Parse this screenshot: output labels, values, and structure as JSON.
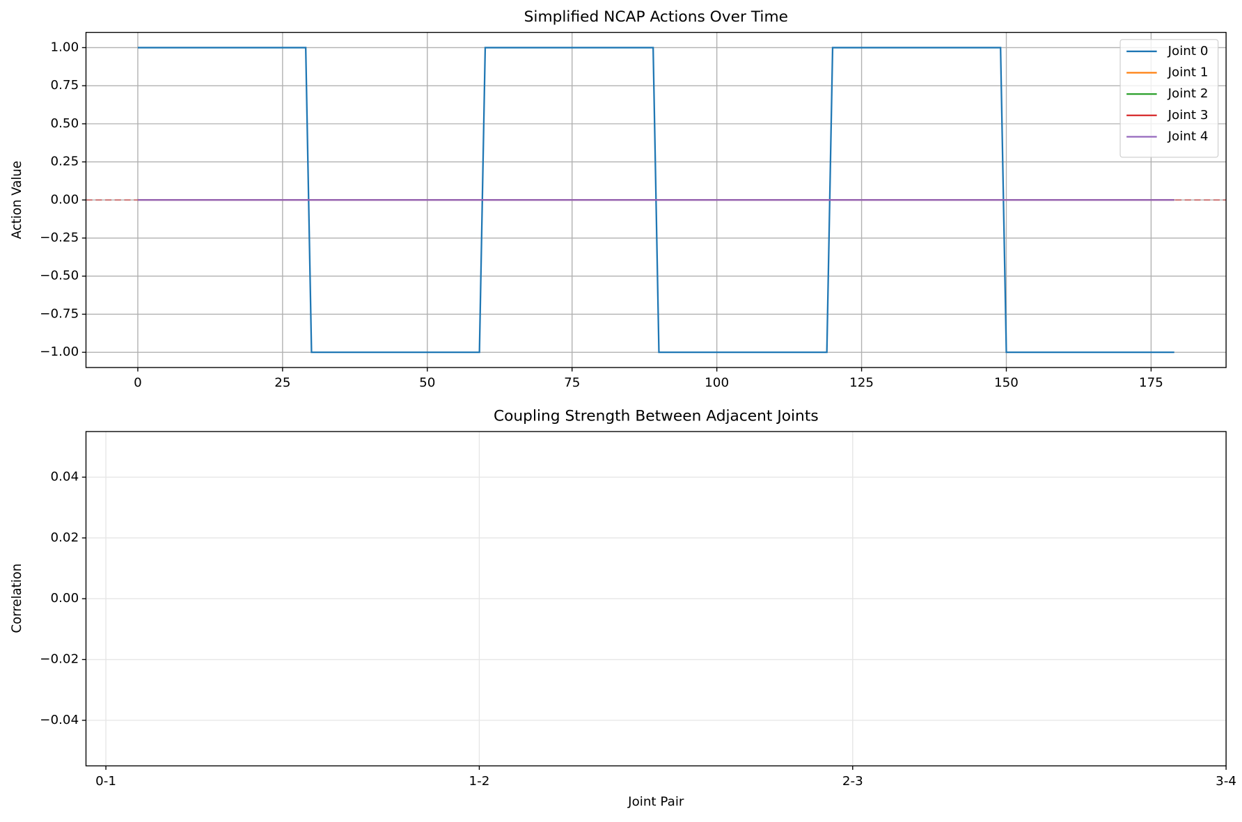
{
  "chart_data": [
    {
      "type": "line",
      "title": "Simplified NCAP Actions Over Time",
      "ylabel": "Action Value",
      "x": [
        0,
        1,
        2,
        3,
        4,
        5,
        6,
        7,
        8,
        9,
        10,
        11,
        12,
        13,
        14,
        15,
        16,
        17,
        18,
        19,
        20,
        21,
        22,
        23,
        24,
        25,
        26,
        27,
        28,
        29,
        30,
        31,
        32,
        33,
        34,
        35,
        36,
        37,
        38,
        39,
        40,
        41,
        42,
        43,
        44,
        45,
        46,
        47,
        48,
        49,
        50,
        51,
        52,
        53,
        54,
        55,
        56,
        57,
        58,
        59,
        60,
        61,
        62,
        63,
        64,
        65,
        66,
        67,
        68,
        69,
        70,
        71,
        72,
        73,
        74,
        75,
        76,
        77,
        78,
        79,
        80,
        81,
        82,
        83,
        84,
        85,
        86,
        87,
        88,
        89,
        90,
        91,
        92,
        93,
        94,
        95,
        96,
        97,
        98,
        99,
        100,
        101,
        102,
        103,
        104,
        105,
        106,
        107,
        108,
        109,
        110,
        111,
        112,
        113,
        114,
        115,
        116,
        117,
        118,
        119,
        120,
        121,
        122,
        123,
        124,
        125,
        126,
        127,
        128,
        129,
        130,
        131,
        132,
        133,
        134,
        135,
        136,
        137,
        138,
        139,
        140,
        141,
        142,
        143,
        144,
        145,
        146,
        147,
        148,
        149,
        150,
        151,
        152,
        153,
        154,
        155,
        156,
        157,
        158,
        159,
        160,
        161,
        162,
        163,
        164,
        165,
        166,
        167,
        168,
        169,
        170,
        171,
        172,
        173,
        174,
        175,
        176,
        177,
        178,
        179
      ],
      "series": [
        {
          "name": "Joint 0",
          "color": "#1f77b4",
          "values": [
            1,
            1,
            1,
            1,
            1,
            1,
            1,
            1,
            1,
            1,
            1,
            1,
            1,
            1,
            1,
            1,
            1,
            1,
            1,
            1,
            1,
            1,
            1,
            1,
            1,
            1,
            1,
            1,
            1,
            1,
            -1,
            -1,
            -1,
            -1,
            -1,
            -1,
            -1,
            -1,
            -1,
            -1,
            -1,
            -1,
            -1,
            -1,
            -1,
            -1,
            -1,
            -1,
            -1,
            -1,
            -1,
            -1,
            -1,
            -1,
            -1,
            -1,
            -1,
            -1,
            -1,
            -1,
            1,
            1,
            1,
            1,
            1,
            1,
            1,
            1,
            1,
            1,
            1,
            1,
            1,
            1,
            1,
            1,
            1,
            1,
            1,
            1,
            1,
            1,
            1,
            1,
            1,
            1,
            1,
            1,
            1,
            1,
            -1,
            -1,
            -1,
            -1,
            -1,
            -1,
            -1,
            -1,
            -1,
            -1,
            -1,
            -1,
            -1,
            -1,
            -1,
            -1,
            -1,
            -1,
            -1,
            -1,
            -1,
            -1,
            -1,
            -1,
            -1,
            -1,
            -1,
            -1,
            -1,
            -1,
            1,
            1,
            1,
            1,
            1,
            1,
            1,
            1,
            1,
            1,
            1,
            1,
            1,
            1,
            1,
            1,
            1,
            1,
            1,
            1,
            1,
            1,
            1,
            1,
            1,
            1,
            1,
            1,
            1,
            1,
            -1,
            -1,
            -1,
            -1,
            -1,
            -1,
            -1,
            -1,
            -1,
            -1,
            -1,
            -1,
            -1,
            -1,
            -1,
            -1,
            -1,
            -1,
            -1,
            -1,
            -1,
            -1,
            -1,
            -1,
            -1,
            -1,
            -1,
            -1,
            -1,
            -1
          ]
        },
        {
          "name": "Joint 1",
          "color": "#ff7f0e",
          "values": [
            0,
            0,
            0,
            0,
            0,
            0,
            0,
            0,
            0,
            0,
            0,
            0,
            0,
            0,
            0,
            0,
            0,
            0,
            0,
            0,
            0,
            0,
            0,
            0,
            0,
            0,
            0,
            0,
            0,
            0,
            0,
            0,
            0,
            0,
            0,
            0,
            0,
            0,
            0,
            0,
            0,
            0,
            0,
            0,
            0,
            0,
            0,
            0,
            0,
            0,
            0,
            0,
            0,
            0,
            0,
            0,
            0,
            0,
            0,
            0,
            0,
            0,
            0,
            0,
            0,
            0,
            0,
            0,
            0,
            0,
            0,
            0,
            0,
            0,
            0,
            0,
            0,
            0,
            0,
            0,
            0,
            0,
            0,
            0,
            0,
            0,
            0,
            0,
            0,
            0,
            0,
            0,
            0,
            0,
            0,
            0,
            0,
            0,
            0,
            0,
            0,
            0,
            0,
            0,
            0,
            0,
            0,
            0,
            0,
            0,
            0,
            0,
            0,
            0,
            0,
            0,
            0,
            0,
            0,
            0,
            0,
            0,
            0,
            0,
            0,
            0,
            0,
            0,
            0,
            0,
            0,
            0,
            0,
            0,
            0,
            0,
            0,
            0,
            0,
            0,
            0,
            0,
            0,
            0,
            0,
            0,
            0,
            0,
            0,
            0,
            0,
            0,
            0,
            0,
            0,
            0,
            0,
            0,
            0,
            0,
            0,
            0,
            0,
            0,
            0,
            0,
            0,
            0,
            0,
            0,
            0,
            0,
            0,
            0,
            0,
            0,
            0,
            0,
            0,
            0
          ]
        },
        {
          "name": "Joint 2",
          "color": "#2ca02c",
          "values": [
            0,
            0,
            0,
            0,
            0,
            0,
            0,
            0,
            0,
            0,
            0,
            0,
            0,
            0,
            0,
            0,
            0,
            0,
            0,
            0,
            0,
            0,
            0,
            0,
            0,
            0,
            0,
            0,
            0,
            0,
            0,
            0,
            0,
            0,
            0,
            0,
            0,
            0,
            0,
            0,
            0,
            0,
            0,
            0,
            0,
            0,
            0,
            0,
            0,
            0,
            0,
            0,
            0,
            0,
            0,
            0,
            0,
            0,
            0,
            0,
            0,
            0,
            0,
            0,
            0,
            0,
            0,
            0,
            0,
            0,
            0,
            0,
            0,
            0,
            0,
            0,
            0,
            0,
            0,
            0,
            0,
            0,
            0,
            0,
            0,
            0,
            0,
            0,
            0,
            0,
            0,
            0,
            0,
            0,
            0,
            0,
            0,
            0,
            0,
            0,
            0,
            0,
            0,
            0,
            0,
            0,
            0,
            0,
            0,
            0,
            0,
            0,
            0,
            0,
            0,
            0,
            0,
            0,
            0,
            0,
            0,
            0,
            0,
            0,
            0,
            0,
            0,
            0,
            0,
            0,
            0,
            0,
            0,
            0,
            0,
            0,
            0,
            0,
            0,
            0,
            0,
            0,
            0,
            0,
            0,
            0,
            0,
            0,
            0,
            0,
            0,
            0,
            0,
            0,
            0,
            0,
            0,
            0,
            0,
            0,
            0,
            0,
            0,
            0,
            0,
            0,
            0,
            0,
            0,
            0,
            0,
            0,
            0,
            0,
            0,
            0,
            0,
            0,
            0,
            0
          ]
        },
        {
          "name": "Joint 3",
          "color": "#d62728",
          "values": [
            0,
            0,
            0,
            0,
            0,
            0,
            0,
            0,
            0,
            0,
            0,
            0,
            0,
            0,
            0,
            0,
            0,
            0,
            0,
            0,
            0,
            0,
            0,
            0,
            0,
            0,
            0,
            0,
            0,
            0,
            0,
            0,
            0,
            0,
            0,
            0,
            0,
            0,
            0,
            0,
            0,
            0,
            0,
            0,
            0,
            0,
            0,
            0,
            0,
            0,
            0,
            0,
            0,
            0,
            0,
            0,
            0,
            0,
            0,
            0,
            0,
            0,
            0,
            0,
            0,
            0,
            0,
            0,
            0,
            0,
            0,
            0,
            0,
            0,
            0,
            0,
            0,
            0,
            0,
            0,
            0,
            0,
            0,
            0,
            0,
            0,
            0,
            0,
            0,
            0,
            0,
            0,
            0,
            0,
            0,
            0,
            0,
            0,
            0,
            0,
            0,
            0,
            0,
            0,
            0,
            0,
            0,
            0,
            0,
            0,
            0,
            0,
            0,
            0,
            0,
            0,
            0,
            0,
            0,
            0,
            0,
            0,
            0,
            0,
            0,
            0,
            0,
            0,
            0,
            0,
            0,
            0,
            0,
            0,
            0,
            0,
            0,
            0,
            0,
            0,
            0,
            0,
            0,
            0,
            0,
            0,
            0,
            0,
            0,
            0,
            0,
            0,
            0,
            0,
            0,
            0,
            0,
            0,
            0,
            0,
            0,
            0,
            0,
            0,
            0,
            0,
            0,
            0,
            0,
            0,
            0,
            0,
            0,
            0,
            0,
            0,
            0,
            0,
            0,
            0
          ]
        },
        {
          "name": "Joint 4",
          "color": "#9467bd",
          "values": [
            0,
            0,
            0,
            0,
            0,
            0,
            0,
            0,
            0,
            0,
            0,
            0,
            0,
            0,
            0,
            0,
            0,
            0,
            0,
            0,
            0,
            0,
            0,
            0,
            0,
            0,
            0,
            0,
            0,
            0,
            0,
            0,
            0,
            0,
            0,
            0,
            0,
            0,
            0,
            0,
            0,
            0,
            0,
            0,
            0,
            0,
            0,
            0,
            0,
            0,
            0,
            0,
            0,
            0,
            0,
            0,
            0,
            0,
            0,
            0,
            0,
            0,
            0,
            0,
            0,
            0,
            0,
            0,
            0,
            0,
            0,
            0,
            0,
            0,
            0,
            0,
            0,
            0,
            0,
            0,
            0,
            0,
            0,
            0,
            0,
            0,
            0,
            0,
            0,
            0,
            0,
            0,
            0,
            0,
            0,
            0,
            0,
            0,
            0,
            0,
            0,
            0,
            0,
            0,
            0,
            0,
            0,
            0,
            0,
            0,
            0,
            0,
            0,
            0,
            0,
            0,
            0,
            0,
            0,
            0,
            0,
            0,
            0,
            0,
            0,
            0,
            0,
            0,
            0,
            0,
            0,
            0,
            0,
            0,
            0,
            0,
            0,
            0,
            0,
            0,
            0,
            0,
            0,
            0,
            0,
            0,
            0,
            0,
            0,
            0,
            0,
            0,
            0,
            0,
            0,
            0,
            0,
            0,
            0,
            0,
            0,
            0,
            0,
            0,
            0,
            0,
            0,
            0,
            0,
            0,
            0,
            0,
            0,
            0,
            0,
            0,
            0,
            0,
            0,
            0
          ]
        }
      ],
      "xlim": [
        -8.95,
        187.95
      ],
      "xticks": [
        0,
        25,
        50,
        75,
        100,
        125,
        150,
        175
      ],
      "ylim": [
        -1.1,
        1.1
      ],
      "yticks": [
        {
          "value": -1,
          "label": "−1.00"
        },
        {
          "value": -0.75,
          "label": "−0.75"
        },
        {
          "value": -0.5,
          "label": "−0.50"
        },
        {
          "value": -0.25,
          "label": "−0.25"
        },
        {
          "value": 0,
          "label": "0.00"
        },
        {
          "value": 0.25,
          "label": "0.25"
        },
        {
          "value": 0.5,
          "label": "0.50"
        },
        {
          "value": 0.75,
          "label": "0.75"
        },
        {
          "value": 1,
          "label": "1.00"
        }
      ],
      "hline": 0,
      "hline_color": "#d62728",
      "grid": true,
      "legend": "upper right"
    },
    {
      "type": "bar",
      "title": "Coupling Strength Between Adjacent Joints",
      "xlabel": "Joint Pair",
      "ylabel": "Correlation",
      "categories": [
        "0-1",
        "1-2",
        "2-3",
        "3-4"
      ],
      "values": [
        null,
        null,
        null,
        null
      ],
      "ylim": [
        -0.055,
        0.055
      ],
      "yticks": [
        {
          "value": -0.04,
          "label": "−0.04"
        },
        {
          "value": -0.02,
          "label": "−0.02"
        },
        {
          "value": 0,
          "label": "0.00"
        },
        {
          "value": 0.02,
          "label": "0.02"
        },
        {
          "value": 0.04,
          "label": "0.04"
        }
      ],
      "grid": true
    }
  ]
}
